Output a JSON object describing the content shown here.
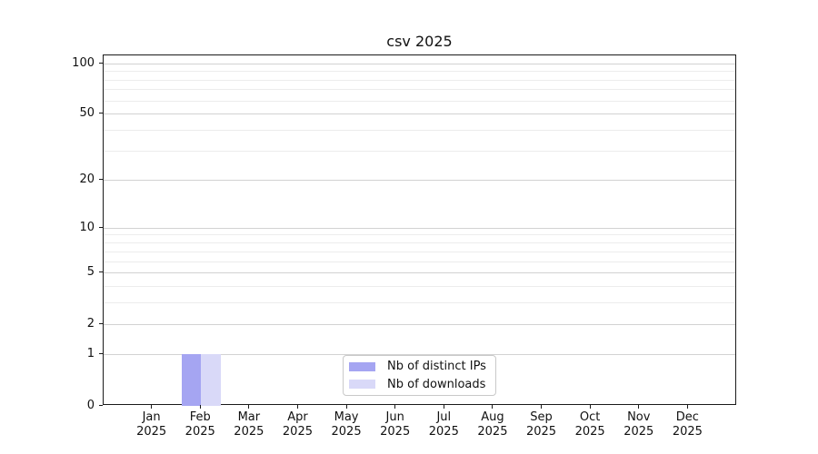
{
  "chart_data": {
    "type": "bar",
    "title": "csv 2025",
    "xlabel": "",
    "ylabel": "",
    "categories": [
      {
        "month": "Jan",
        "year": "2025"
      },
      {
        "month": "Feb",
        "year": "2025"
      },
      {
        "month": "Mar",
        "year": "2025"
      },
      {
        "month": "Apr",
        "year": "2025"
      },
      {
        "month": "May",
        "year": "2025"
      },
      {
        "month": "Jun",
        "year": "2025"
      },
      {
        "month": "Jul",
        "year": "2025"
      },
      {
        "month": "Aug",
        "year": "2025"
      },
      {
        "month": "Sep",
        "year": "2025"
      },
      {
        "month": "Oct",
        "year": "2025"
      },
      {
        "month": "Nov",
        "year": "2025"
      },
      {
        "month": "Dec",
        "year": "2025"
      }
    ],
    "series": [
      {
        "name": "Nb of distinct IPs",
        "color": "#a5a5f2",
        "values": [
          0,
          1,
          0,
          0,
          0,
          0,
          0,
          0,
          0,
          0,
          0,
          0
        ]
      },
      {
        "name": "Nb of downloads",
        "color": "#d9d9f8",
        "values": [
          0,
          1,
          0,
          0,
          0,
          0,
          0,
          0,
          0,
          0,
          0,
          0
        ]
      }
    ],
    "y_axis": {
      "scale": "log1p",
      "ticks": [
        0,
        1,
        2,
        5,
        10,
        20,
        50,
        100
      ],
      "minor_gridlines": [
        3,
        4,
        6,
        7,
        8,
        9,
        30,
        40,
        60,
        70,
        80,
        90
      ],
      "ylim": [
        0,
        112
      ]
    },
    "legend": {
      "position": "lower center"
    },
    "grid": true,
    "colors": {
      "spine": "#1a1a1a",
      "major_grid": "#d2d2d2",
      "minor_grid": "#ececec"
    }
  }
}
